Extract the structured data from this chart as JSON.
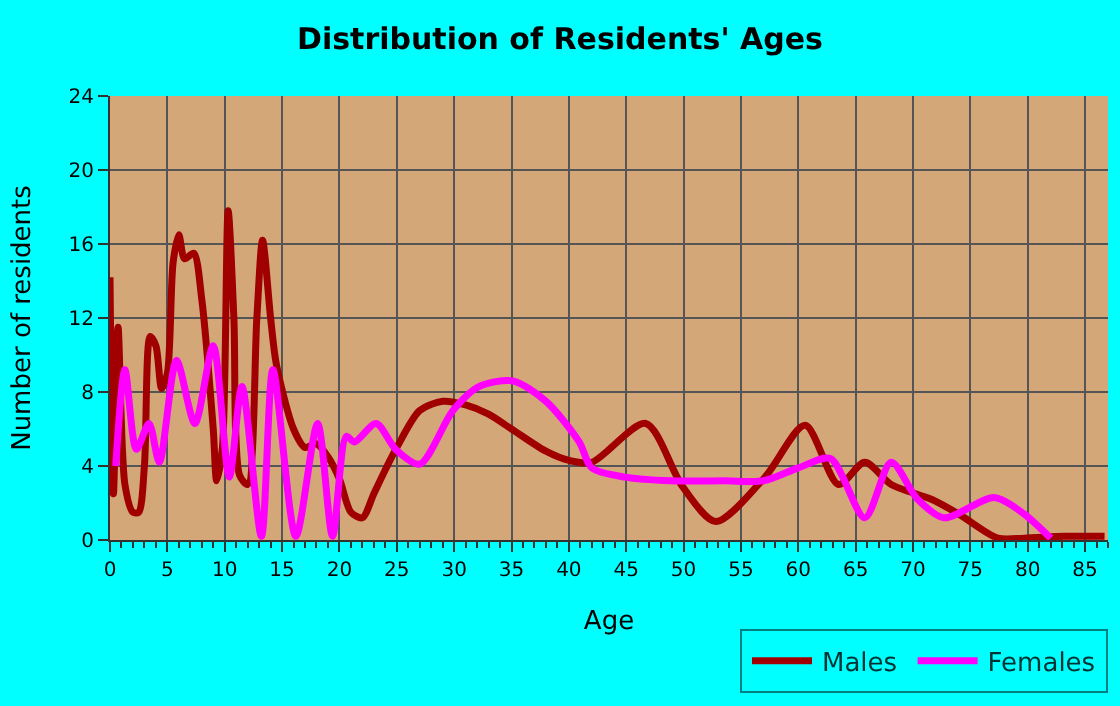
{
  "chart_data": {
    "type": "line",
    "title": "Distribution of Residents' Ages",
    "xlabel": "Age",
    "ylabel": "Number of residents",
    "xlim": [
      0,
      87
    ],
    "ylim": [
      0,
      24
    ],
    "xticks": [
      0,
      5,
      10,
      15,
      20,
      25,
      30,
      35,
      40,
      45,
      50,
      55,
      60,
      65,
      70,
      75,
      80,
      85
    ],
    "yticks": [
      0,
      4,
      8,
      12,
      16,
      20,
      24
    ],
    "grid": true,
    "legend": "bottom right",
    "marker": "none",
    "line_style": "solid",
    "series": [
      {
        "name": "Males",
        "color": "#a00000",
        "x": [
          0,
          0.3,
          0.7,
          1.3,
          2,
          2.5,
          3,
          3.5,
          4,
          4.5,
          5,
          5.5,
          6,
          6.5,
          7.3,
          8,
          9,
          9.3,
          9.8,
          10.3,
          10.8,
          11.3,
          12,
          12.8,
          13.3,
          14,
          14.5,
          16,
          17,
          18,
          19,
          20,
          21,
          22,
          23,
          24,
          25,
          27,
          29,
          31,
          33,
          35,
          38,
          40,
          42,
          46.7,
          49.9,
          52.8,
          57.1,
          60.6,
          63.5,
          65.8,
          68.1,
          71.6,
          74,
          77.4,
          79.7,
          83.2,
          86.7
        ],
        "values": [
          14.2,
          2.5,
          11.5,
          3,
          1.5,
          1.5,
          4,
          11,
          10.5,
          8.2,
          9,
          15,
          16.5,
          15.2,
          15.5,
          13,
          6,
          3.2,
          5,
          17.8,
          12,
          3.5,
          3,
          12,
          16.2,
          12,
          9.5,
          6,
          5,
          5.2,
          4.5,
          3.3,
          1.5,
          1.2,
          2.5,
          3.8,
          5,
          7,
          7.5,
          7.3,
          6.8,
          6,
          4.8,
          4.3,
          4.2,
          6.3,
          2.9,
          1,
          3.4,
          6.2,
          3,
          4.2,
          3,
          2.2,
          1.4,
          0.1,
          0.1,
          0.2,
          0.2
        ]
      },
      {
        "name": "Females",
        "color": "#ff00ff",
        "x": [
          0.5,
          1.3,
          2.3,
          3.4,
          4.3,
          5.8,
          7.4,
          9,
          10.4,
          11.5,
          13.2,
          14.2,
          16.2,
          18.1,
          19.4,
          20.6,
          21.3,
          23.2,
          24.9,
          27,
          29.9,
          32.2,
          35.1,
          38,
          40.9,
          42,
          44.9,
          48.9,
          53.5,
          57,
          60,
          62.8,
          65.8,
          68.1,
          70.4,
          72.7,
          77.1,
          79.7,
          82
        ],
        "values": [
          4,
          9.2,
          4.9,
          6.3,
          4.2,
          9.7,
          6.3,
          10.5,
          3.4,
          8.3,
          0.2,
          9.2,
          0.2,
          6.3,
          0.2,
          5.6,
          5.3,
          6.3,
          4.9,
          4.1,
          7,
          8.3,
          8.6,
          7.5,
          5.3,
          3.9,
          3.4,
          3.2,
          3.2,
          3.2,
          3.9,
          4.4,
          1.2,
          4.2,
          2.2,
          1.2,
          2.3,
          1.4,
          0.1
        ]
      }
    ]
  }
}
